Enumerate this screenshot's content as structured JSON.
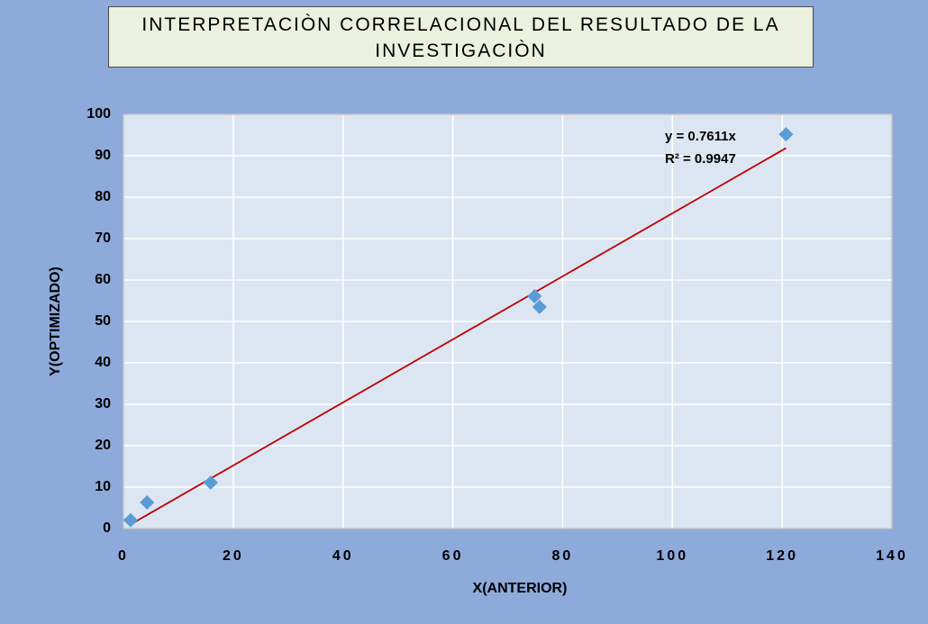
{
  "chart_data": {
    "type": "scatter",
    "title": "INTERPRETACIÒN CORRELACIONAL DEL RESULTADO DE LA INVESTIGACIÒN",
    "x_label": "X(ANTERIOR)",
    "y_label": "Y(OPTIMIZADO)",
    "series": [
      {
        "name": "Y(OPTIMIZADO)",
        "color": "#5b9bd5",
        "x": [
          1.3,
          4.3,
          15.9,
          74.9,
          75.8,
          120.7
        ],
        "values": [
          2,
          6.3,
          11.1,
          56.1,
          53.5,
          95.2
        ]
      }
    ],
    "trendline": {
      "slope": 0.7611,
      "color": "#c00000",
      "equation": "y = 0.7611x",
      "r2": "R² = 0.9947"
    },
    "xlim": [
      0,
      140
    ],
    "xticks": [
      0,
      20,
      40,
      60,
      80,
      100,
      120,
      140
    ],
    "ylim": [
      0,
      100
    ],
    "yticks": [
      0,
      10,
      20,
      30,
      40,
      50,
      60,
      70,
      80,
      90,
      100
    ],
    "grid": true
  }
}
